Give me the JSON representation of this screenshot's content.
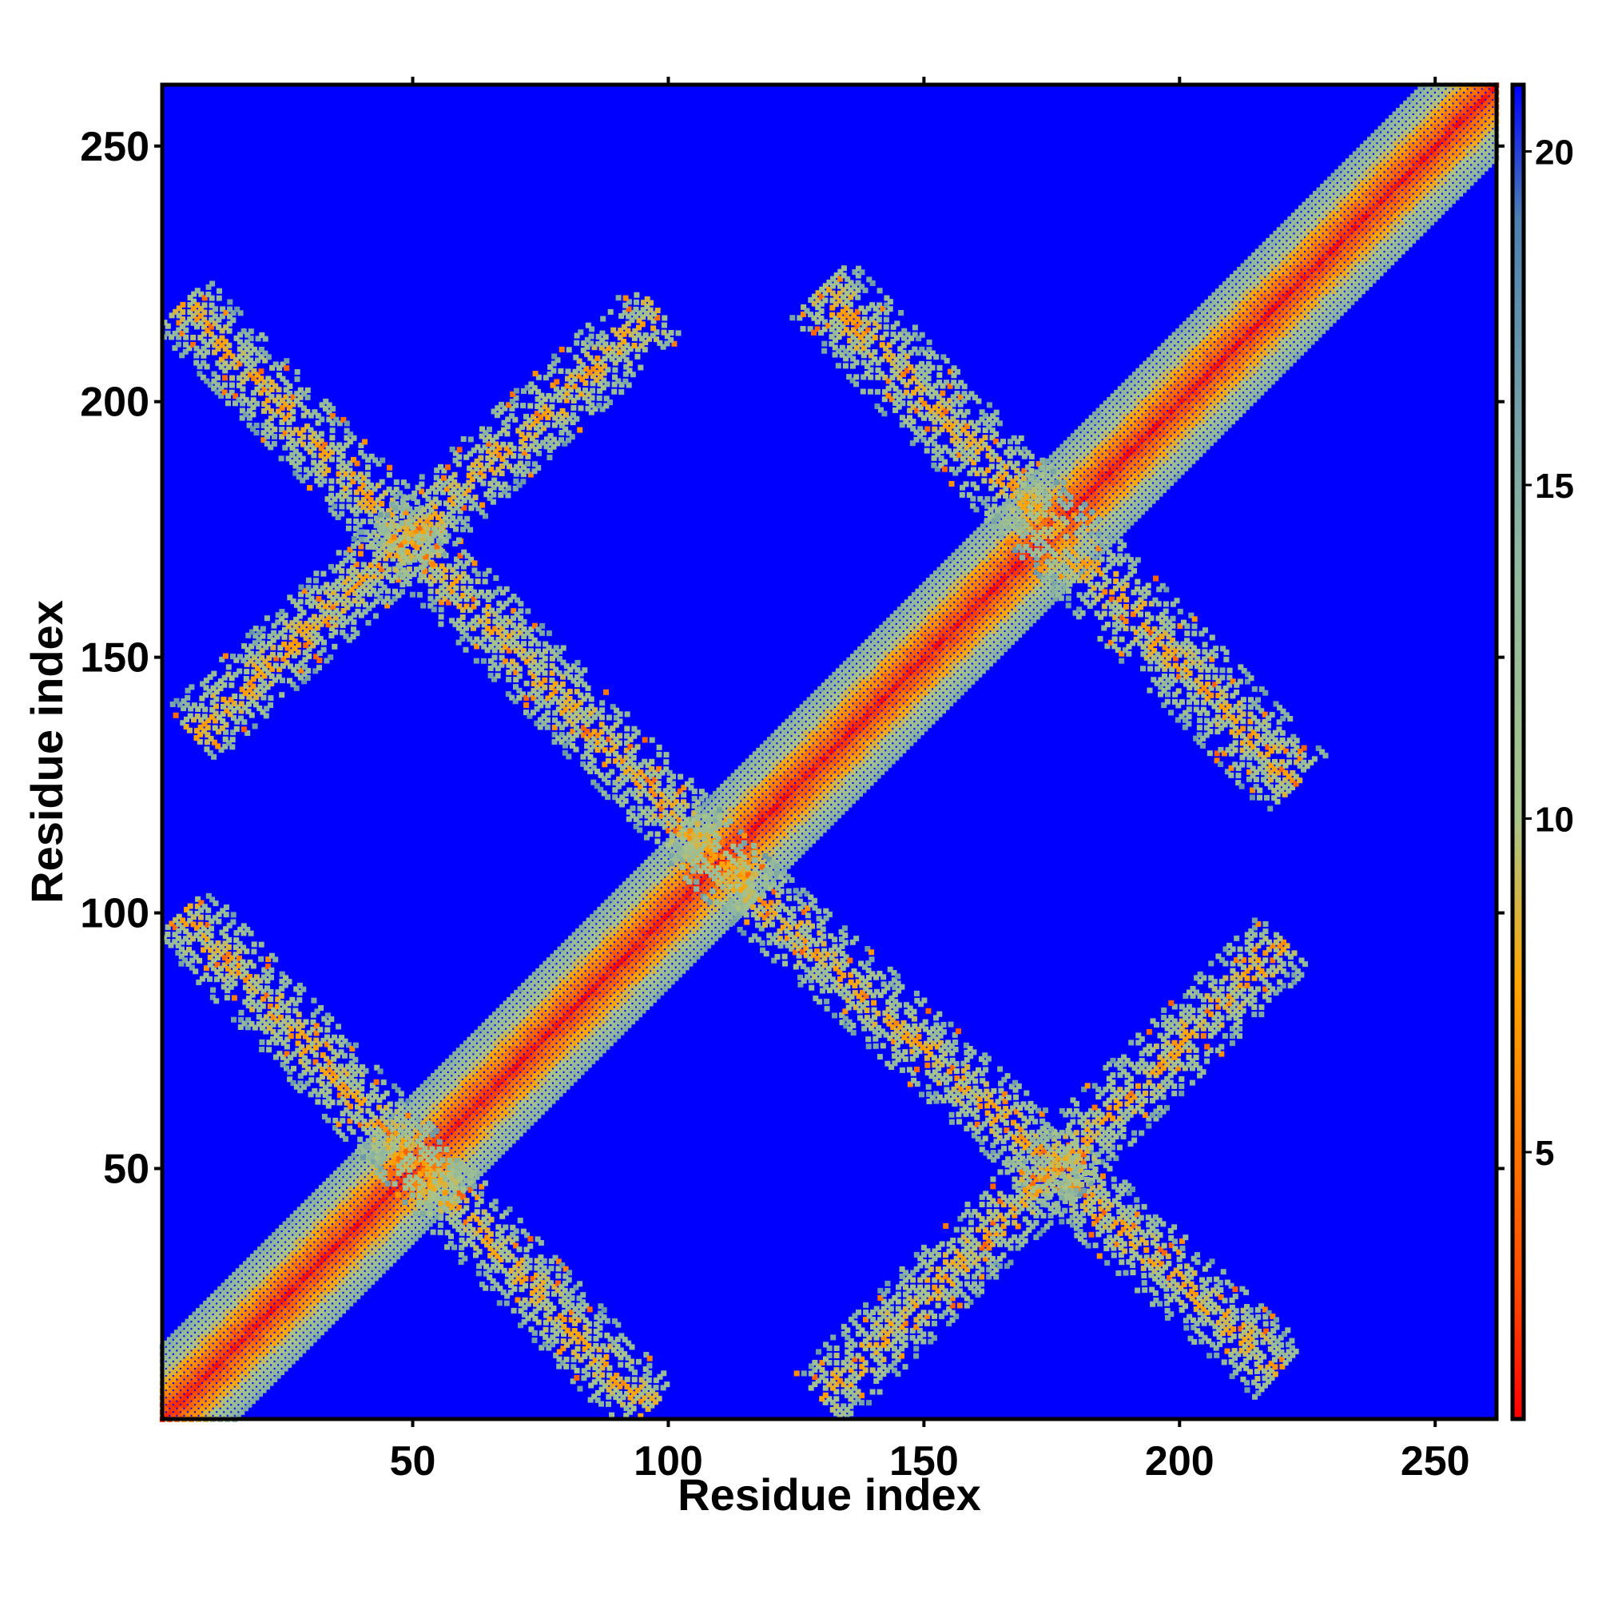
{
  "chart_data": {
    "type": "heatmap",
    "title": "",
    "xlabel": "Residue index",
    "ylabel": "Residue index",
    "xlim": [
      1,
      262
    ],
    "ylim": [
      1,
      262
    ],
    "x_ticks": [
      50,
      100,
      150,
      200,
      250
    ],
    "y_ticks": [
      50,
      100,
      150,
      200,
      250
    ],
    "x_tick_labels": [
      "50",
      "100",
      "150",
      "200",
      "250"
    ],
    "y_tick_labels": [
      "50",
      "100",
      "150",
      "200",
      "250"
    ],
    "grid": false,
    "legend": "none",
    "colorbar": {
      "position": "right",
      "range": [
        1,
        21
      ],
      "ticks": [
        5,
        10,
        15,
        20
      ],
      "tick_labels": [
        "5",
        "10",
        "15",
        "20"
      ],
      "colors": [
        "#ff0000",
        "#ff4a00",
        "#ffa500",
        "#a8c48a",
        "#8fb6a0",
        "#4d7fb0",
        "#0000ff"
      ],
      "color_stops": [
        1,
        3,
        7.5,
        10,
        14,
        19,
        21
      ]
    },
    "value_description": "pairwise distance map, low values red, high values blue",
    "background_value": 21,
    "features": [
      {
        "kind": "diagonal",
        "from": [
          1,
          1
        ],
        "to": [
          262,
          262
        ],
        "width": 10
      },
      {
        "kind": "antidiagonal",
        "from": [
          5,
          219
        ],
        "to": [
          112,
          108
        ],
        "width": 7
      },
      {
        "kind": "antidiagonal",
        "from": [
          5,
          100
        ],
        "to": [
          96,
          3
        ],
        "width": 7
      },
      {
        "kind": "antidiagonal",
        "from": [
          130,
          222
        ],
        "to": [
          223,
          125
        ],
        "width": 8
      },
      {
        "kind": "antidiagonal",
        "from": [
          112,
          108
        ],
        "to": [
          220,
          10
        ],
        "width": 7
      },
      {
        "kind": "diagonal",
        "from": [
          7,
          135
        ],
        "to": [
          98,
          218
        ],
        "width": 7
      },
      {
        "kind": "diagonal",
        "from": [
          130,
          5
        ],
        "to": [
          221,
          95
        ],
        "width": 7
      }
    ]
  }
}
